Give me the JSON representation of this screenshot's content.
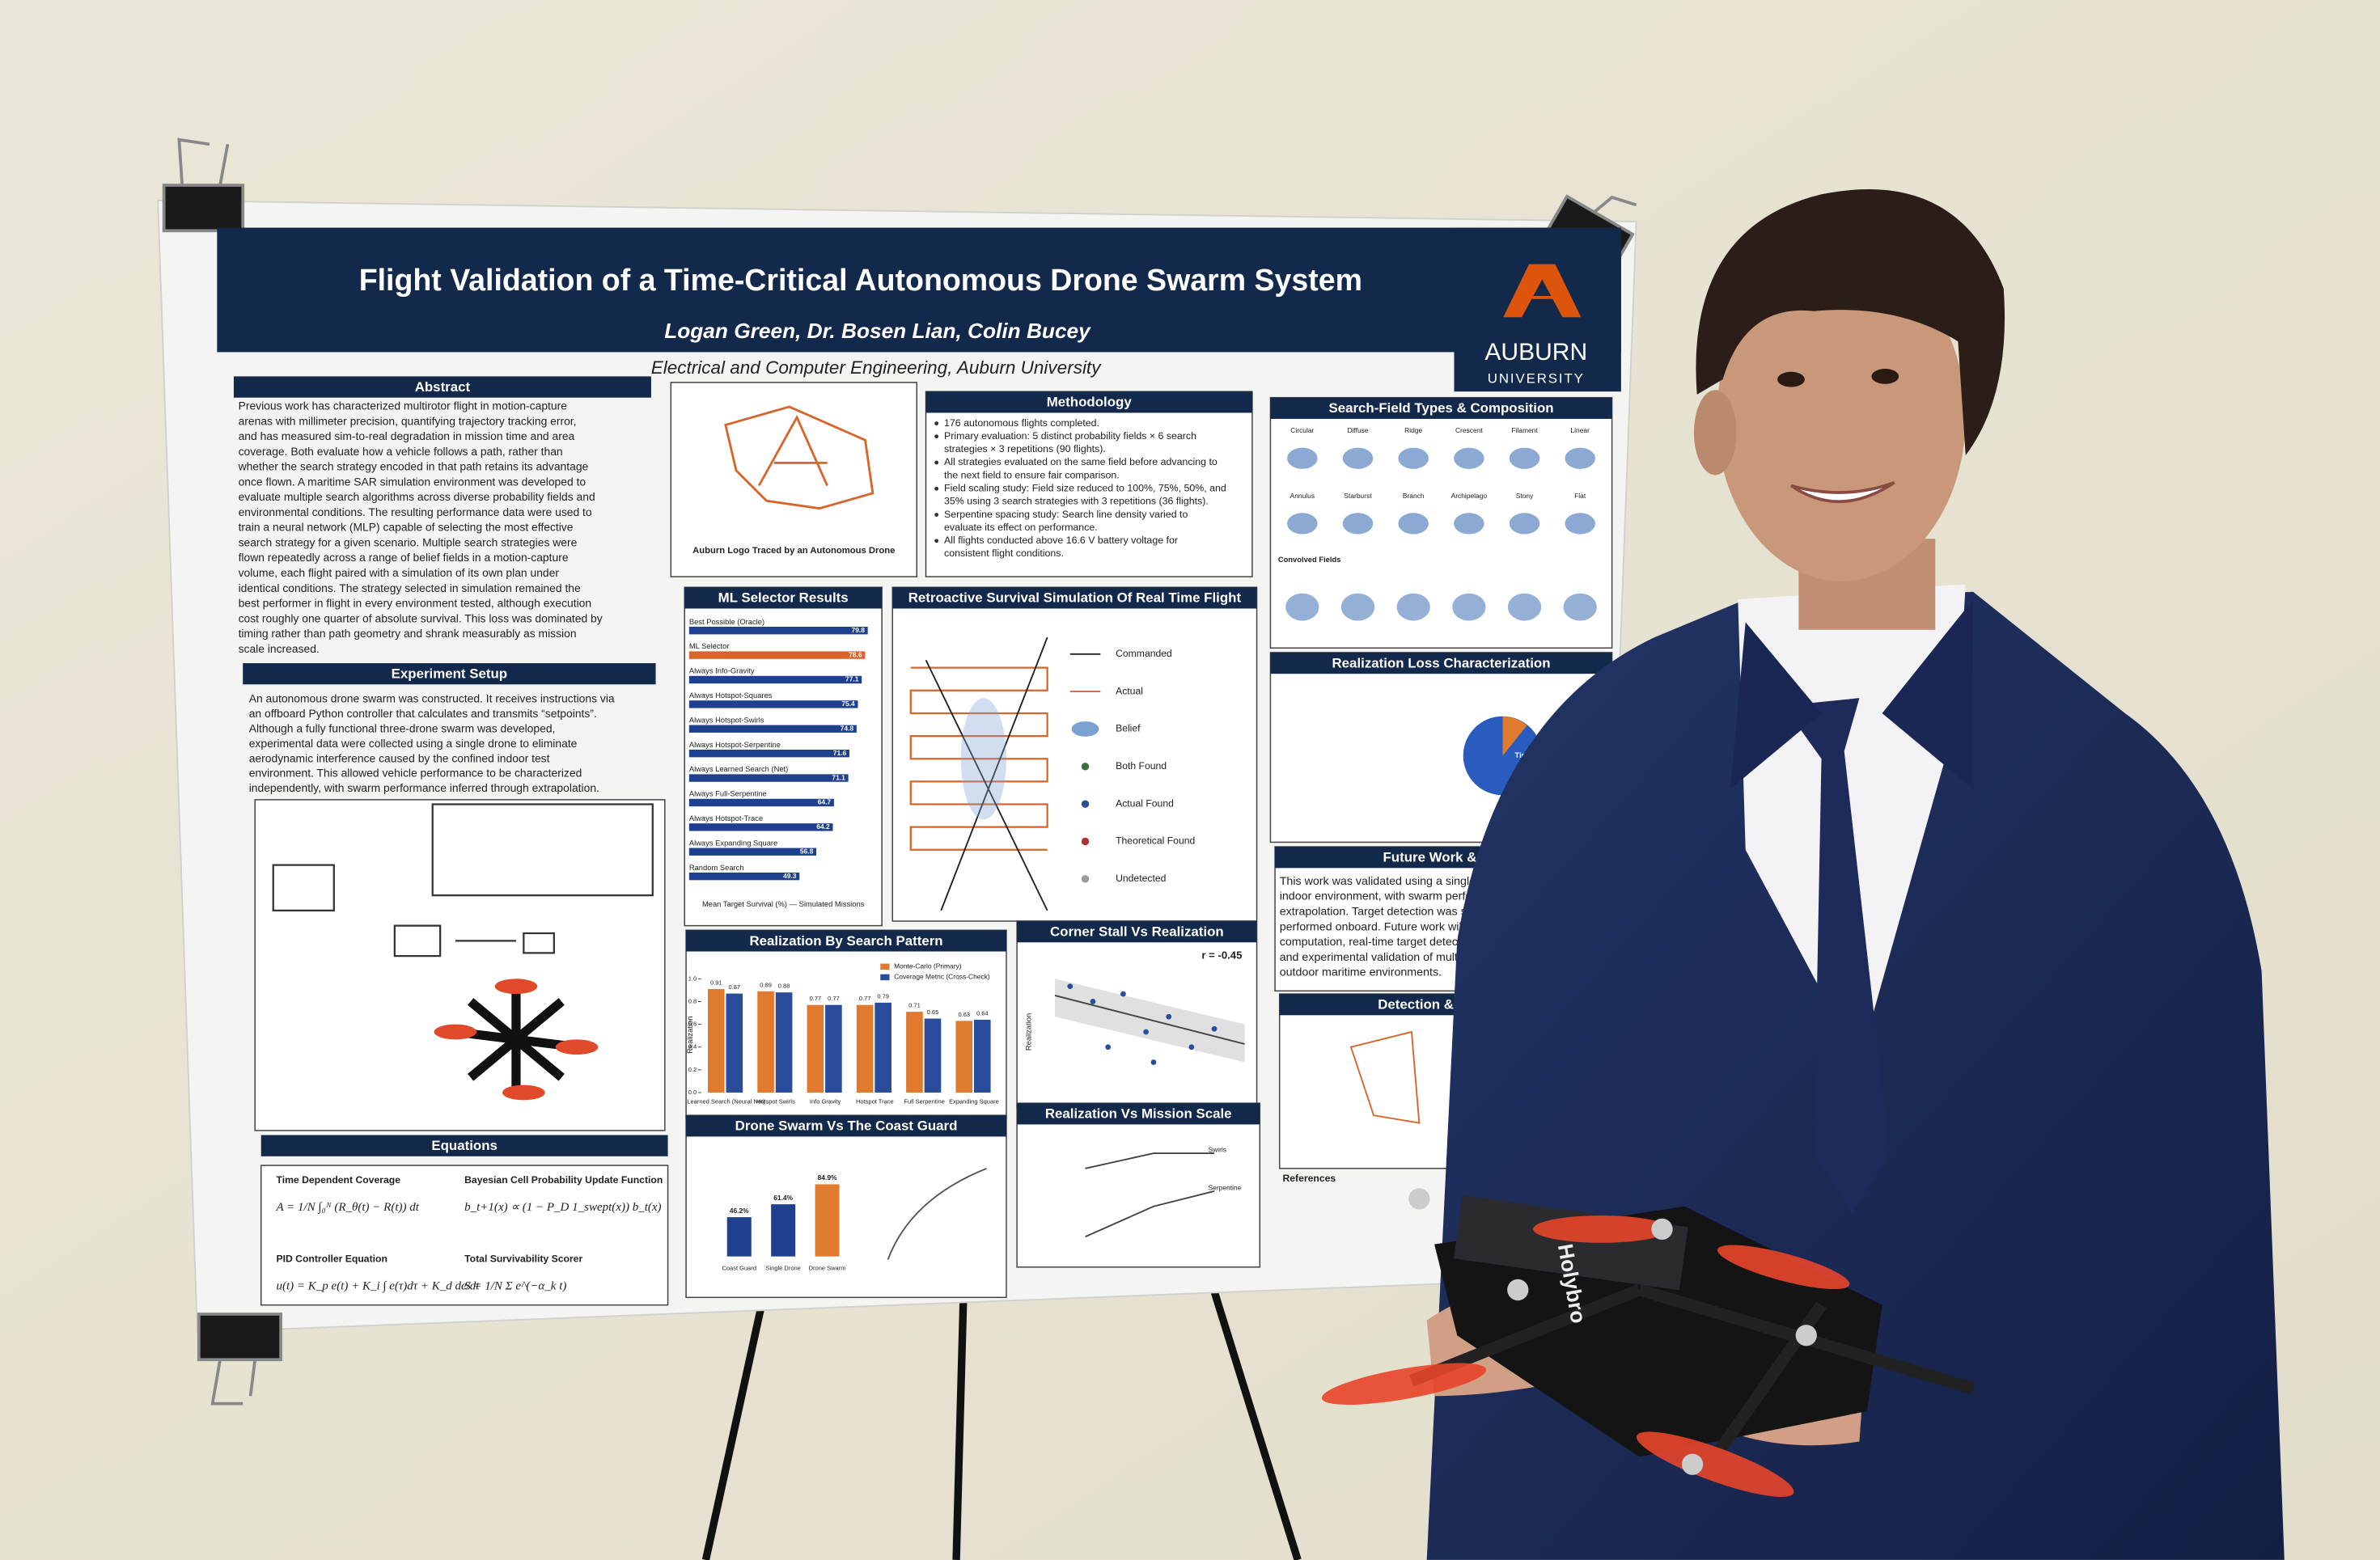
{
  "poster": {
    "title": "Flight Validation of a Time-Critical Autonomous Drone Swarm System",
    "authors": "Logan Green, Dr. Bosen Lian, Colin Bucey",
    "affiliation": "Electrical and Computer Engineering, Auburn University",
    "logo_wordmark": "AUBURN",
    "logo_subtitle": "UNIVERSITY"
  },
  "abstract": {
    "heading": "Abstract",
    "lines": [
      "Previous work has characterized multirotor flight in motion-capture",
      "arenas with millimeter precision, quantifying trajectory tracking error,",
      "and has measured sim-to-real degradation in mission time and area",
      "coverage. Both evaluate how a vehicle follows a path, rather than",
      "whether the search strategy encoded in that path retains its advantage",
      "once flown. A maritime SAR simulation environment was developed to",
      "evaluate multiple search algorithms across diverse probability fields and",
      "environmental conditions. The resulting performance data were used to",
      "train a neural network (MLP) capable of selecting the most effective",
      "search strategy for a given scenario. Multiple search strategies were",
      "flown repeatedly across a range of belief fields in a motion-capture",
      "volume, each flight paired with a simulation of its own plan under",
      "identical conditions. The strategy selected in simulation remained the",
      "best performer in flight in every environment tested, although execution",
      "cost roughly one quarter of absolute survival. This loss was dominated by",
      "timing rather than path geometry and shrank measurably as mission",
      "scale increased."
    ]
  },
  "experiment": {
    "heading": "Experiment Setup",
    "lines": [
      "An autonomous drone swarm was constructed. It receives instructions via",
      "an offboard Python controller that calculates and transmits “setpoints”.",
      "Although a fully functional three-drone swarm was developed,",
      "experimental data were collected using a single drone to eliminate",
      "aerodynamic interference caused by the confined indoor test",
      "environment. This allowed vehicle performance to be characterized",
      "independently, with swarm performance inferred through extrapolation."
    ]
  },
  "equations": {
    "heading": "Equations",
    "items": [
      {
        "name": "Time Dependent Coverage",
        "formula": "A = 1/N ∫₀ᴺ (R_θ(t) − R(t)) dt"
      },
      {
        "name": "Bayesian Cell Probability Update Function",
        "formula": "b_t+1(x) ∝ (1 − P_D 1_swept(x)) b_t(x)"
      },
      {
        "name": "PID Controller Equation",
        "formula": "u(t) = K_p e(t) + K_i ∫ e(τ)dτ + K_d de/dt"
      },
      {
        "name": "Total Survivability Scorer",
        "formula": "S = 1/N Σ e^(−α_k t)"
      }
    ]
  },
  "logo_caption": "Auburn Logo Traced by an Autonomous Drone",
  "methodology": {
    "heading": "Methodology",
    "bullets": [
      [
        "176 autonomous flights completed."
      ],
      [
        "Primary evaluation: 5 distinct probability fields × 6 search",
        "strategies × 3 repetitions (90 flights)."
      ],
      [
        "All strategies evaluated on the same field before advancing to",
        "the next field to ensure fair comparison."
      ],
      [
        "Field scaling study: Field size reduced to 100%, 75%, 50%, and",
        "35% using 3 search strategies with 3 repetitions (36 flights)."
      ],
      [
        "Serpentine spacing study: Search line density varied to",
        "evaluate its effect on performance."
      ],
      [
        "All flights conducted above 16.6 V battery voltage for",
        "consistent flight conditions."
      ]
    ]
  },
  "ml_selector": {
    "heading": "ML Selector Results",
    "type": "bar",
    "categories": [
      "Best Possible (Oracle)",
      "ML Selector",
      "Always Info-Gravity",
      "Always Hotspot-Squares",
      "Always Hotspot-Swirls",
      "Always Hotspot-Serpentine",
      "Always Learned Search (Net)",
      "Always Full-Serpentine",
      "Always Hotspot-Trace",
      "Always Expanding Square",
      "Random Search"
    ],
    "values": [
      79.8,
      78.6,
      77.1,
      75.4,
      74.8,
      71.6,
      71.1,
      64.7,
      64.2,
      56.8,
      49.3
    ],
    "color": "#1f3f8f",
    "highlight_color": "#d9642a",
    "xlim": [
      0,
      80
    ],
    "x_label": "Mean Target Survival (%) — Simulated Missions"
  },
  "retroactive": {
    "heading": "Retroactive Survival Simulation Of Real Time Flight",
    "legend": [
      "Commanded",
      "Actual",
      "Belief",
      "Both Found",
      "Actual Found",
      "Theoretical Found",
      "Undetected"
    ]
  },
  "realization_pattern": {
    "heading": "Realization By Search Pattern",
    "type": "bar",
    "categories": [
      "Learned Search (Neural Net)",
      "Hotspot Swirls",
      "Info Gravity",
      "Hotspot Trace",
      "Full Serpentine",
      "Expanding Square"
    ],
    "series": [
      {
        "name": "Monte-Carlo (Primary)",
        "color": "#e07a2e",
        "values": [
          0.91,
          0.89,
          0.77,
          0.77,
          0.71,
          0.63
        ]
      },
      {
        "name": "Coverage Metric (Cross-Check)",
        "color": "#2a4d9b",
        "values": [
          0.87,
          0.88,
          0.77,
          0.79,
          0.65,
          0.64
        ]
      }
    ],
    "ylim": [
      0,
      1
    ],
    "yticks": [
      {
        "value": 0,
        "label": "0.0"
      },
      0.2,
      0.4,
      0.6,
      0.8,
      {
        "value": 1,
        "label": "1.0"
      }
    ],
    "y_label": "Realization"
  },
  "corner_stall": {
    "heading": "Corner Stall Vs Realization",
    "annotation": "r = -0.45",
    "y_label": "Realization"
  },
  "coast_guard": {
    "heading": "Drone Swarm Vs The Coast Guard",
    "type": "bar",
    "categories": [
      "Coast Guard",
      "Single Drone",
      "Drone Swarm"
    ],
    "values": [
      46.2,
      61.4,
      84.9
    ],
    "value_labels": [
      "46.2%",
      "61.4%",
      "84.9%"
    ],
    "colors": [
      "#1f3f8f",
      "#1f3f8f",
      "#e07a2e"
    ],
    "ylim": [
      0,
      100
    ]
  },
  "mission_scale": {
    "heading": "Realization Vs Mission Scale",
    "series_labels": [
      "Swirls",
      "Serpentine"
    ]
  },
  "search_fields": {
    "heading": "Search-Field Types & Composition",
    "types": [
      "Circular",
      "Diffuse",
      "Ridge",
      "Crescent",
      "Filament",
      "Linear",
      "Annulus",
      "Starburst",
      "Branch",
      "Archipelago",
      "Stony",
      "Flat"
    ],
    "convolved": "Convolved Fields"
  },
  "loss": {
    "heading": "Realization Loss Characterization",
    "pie_label": "Timing"
  },
  "future_work": {
    "heading": "Future Work & Limi",
    "lines": [
      "This work was validated using a single d",
      "indoor environment, with swarm perfo",
      "extrapolation. Target detection was sim",
      "performed onboard. Future work will i",
      "computation, real-time target detecti",
      "and experimental validation of multi-",
      "outdoor maritime environments."
    ]
  },
  "detection": {
    "heading": "Detection & Planning"
  },
  "references": {
    "heading": "References"
  },
  "drone_label": "Holybro"
}
